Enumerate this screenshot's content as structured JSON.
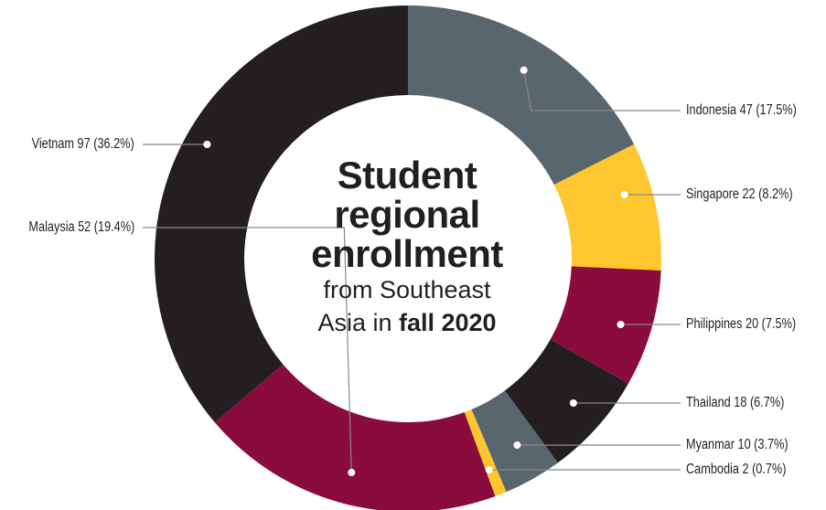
{
  "center_title": {
    "line1": "Student",
    "line2": "regional",
    "line3": "enrollment",
    "line4": "from Southeast",
    "line5_prefix": "Asia in ",
    "line5_bold": "fall 2020"
  },
  "colors": {
    "gray": "#5a666e",
    "gold": "#fec72f",
    "maroon": "#8a0c3d",
    "black": "#231f20",
    "leader": "#888888"
  },
  "chart_data": {
    "type": "pie",
    "donut": true,
    "title": "Student regional enrollment from Southeast Asia in fall 2020",
    "slices": [
      {
        "name": "Indonesia",
        "count": 47,
        "percent": 17.5,
        "label": "Indonesia 47 (17.5%)",
        "color": "#5a666e",
        "side": "right"
      },
      {
        "name": "Singapore",
        "count": 22,
        "percent": 8.2,
        "label": "Singapore 22 (8.2%)",
        "color": "#fec72f",
        "side": "right"
      },
      {
        "name": "Philippines",
        "count": 20,
        "percent": 7.5,
        "label": "Philippines 20 (7.5%)",
        "color": "#8a0c3d",
        "side": "right"
      },
      {
        "name": "Thailand",
        "count": 18,
        "percent": 6.7,
        "label": "Thailand 18 (6.7%)",
        "color": "#231f20",
        "side": "right"
      },
      {
        "name": "Myanmar",
        "count": 10,
        "percent": 3.7,
        "label": "Myanmar 10 (3.7%)",
        "color": "#5a666e",
        "side": "right"
      },
      {
        "name": "Cambodia",
        "count": 2,
        "percent": 0.7,
        "label": "Cambodia 2 (0.7%)",
        "color": "#fec72f",
        "side": "right"
      },
      {
        "name": "Malaysia",
        "count": 52,
        "percent": 19.4,
        "label": "Malaysia 52 (19.4%)",
        "color": "#8a0c3d",
        "side": "left"
      },
      {
        "name": "Vietnam",
        "count": 97,
        "percent": 36.2,
        "label": "Vietnam 97 (36.2%)",
        "color": "#231f20",
        "side": "left"
      }
    ]
  }
}
